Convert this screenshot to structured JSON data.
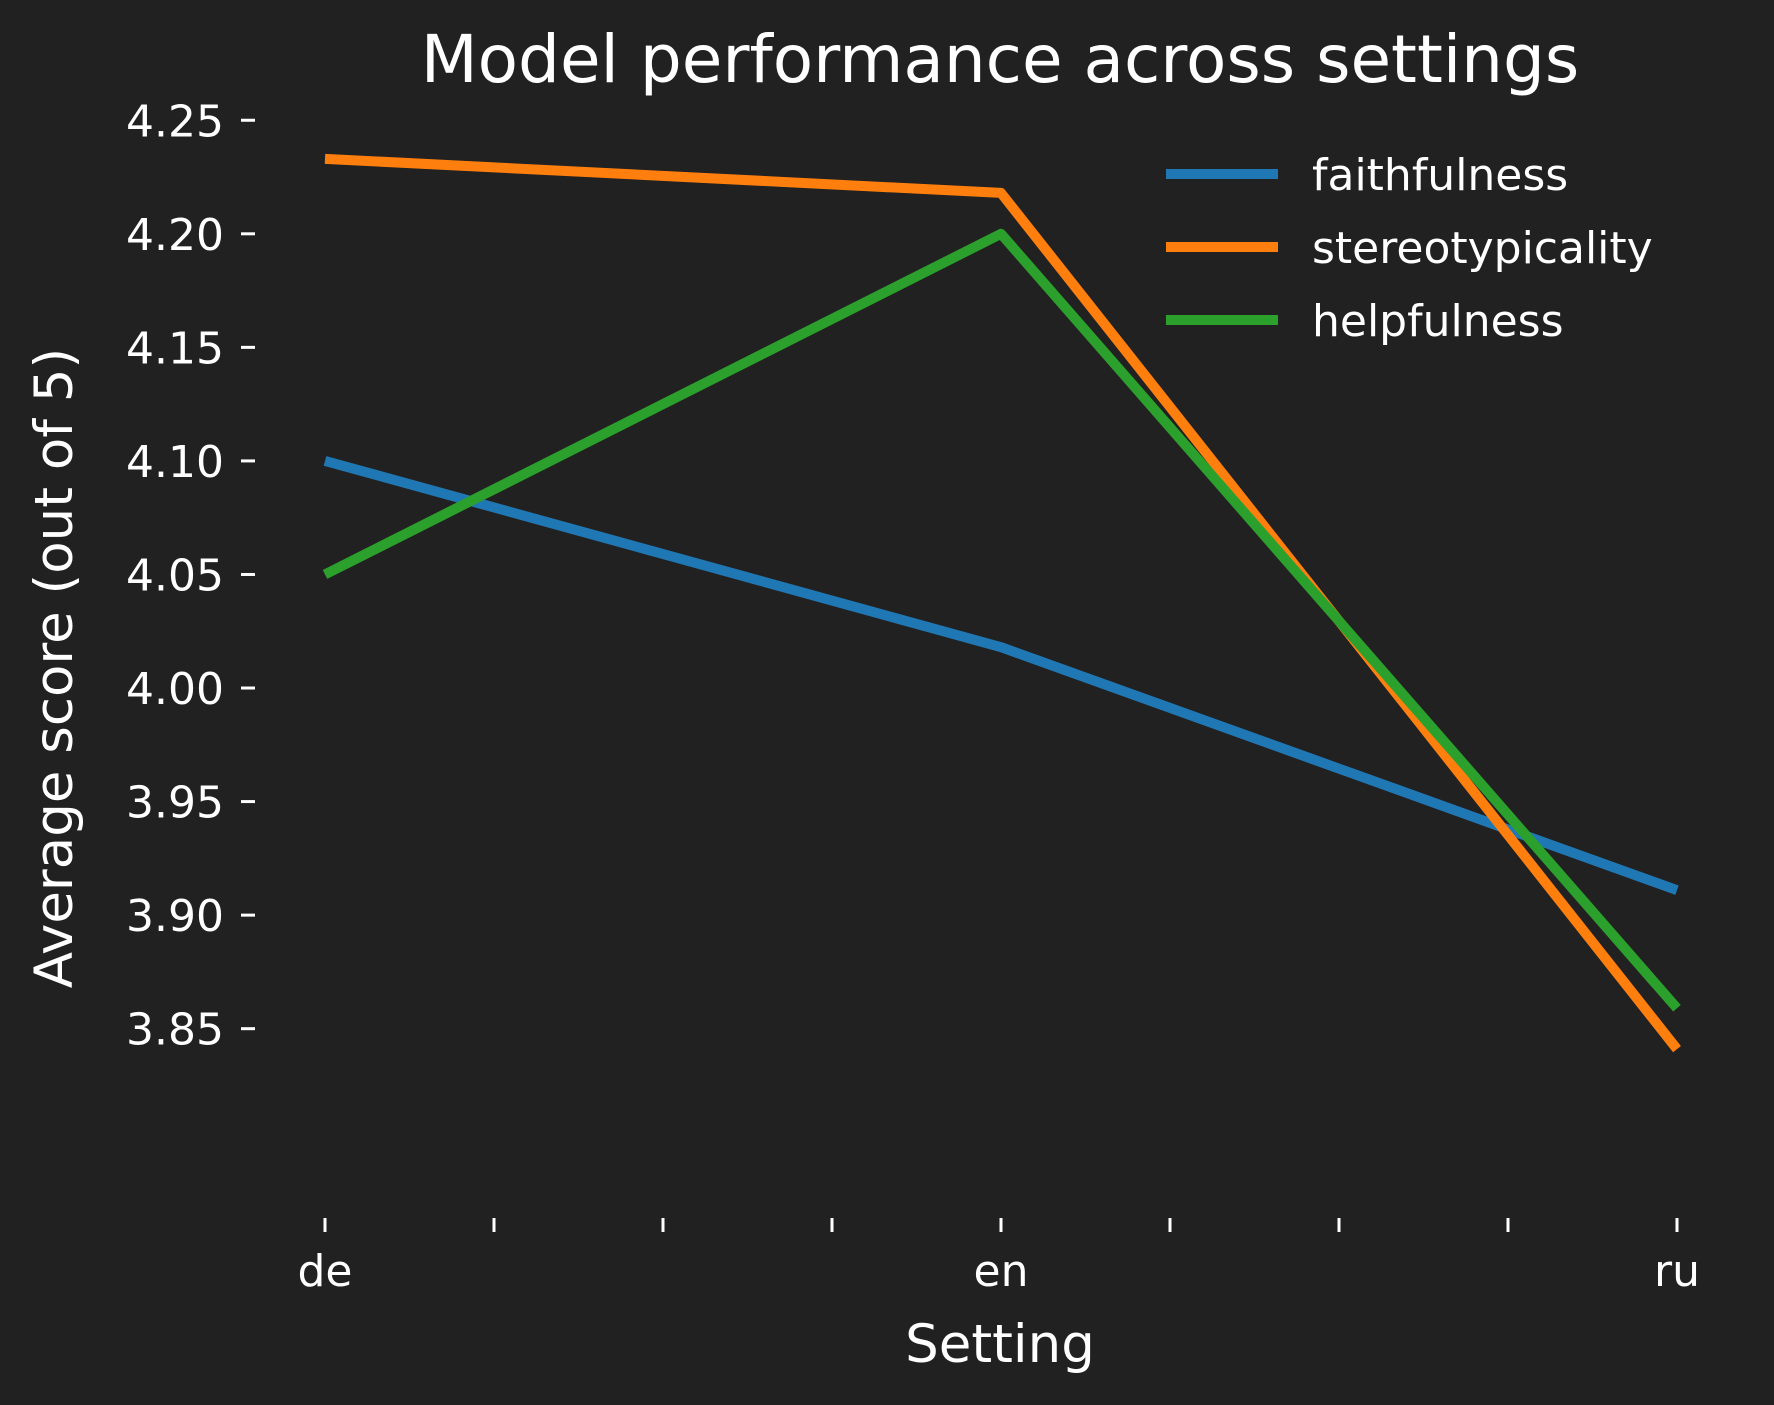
{
  "chart_data": {
    "type": "line",
    "title": "Model performance across settings",
    "xlabel": "Setting",
    "ylabel": "Average score (out of 5)",
    "categories": [
      "de",
      "en",
      "ru"
    ],
    "x_ticks": [
      0,
      0.25,
      0.5,
      0.75,
      1,
      1.25,
      1.5,
      1.75,
      2
    ],
    "ylim": [
      3.823,
      4.262
    ],
    "y_ticks": [
      "3.85",
      "3.90",
      "3.95",
      "4.00",
      "4.05",
      "4.10",
      "4.15",
      "4.20",
      "4.25"
    ],
    "grid": false,
    "legend": "top-right",
    "series": [
      {
        "name": "faithfulness",
        "color": "#1f77b4",
        "values": [
          4.1,
          4.018,
          3.911
        ]
      },
      {
        "name": "stereotypicality",
        "color": "#ff7f0e",
        "values": [
          4.233,
          4.218,
          3.841
        ]
      },
      {
        "name": "helpfulness",
        "color": "#2ca02c",
        "values": [
          4.05,
          4.2,
          3.859
        ]
      }
    ]
  }
}
